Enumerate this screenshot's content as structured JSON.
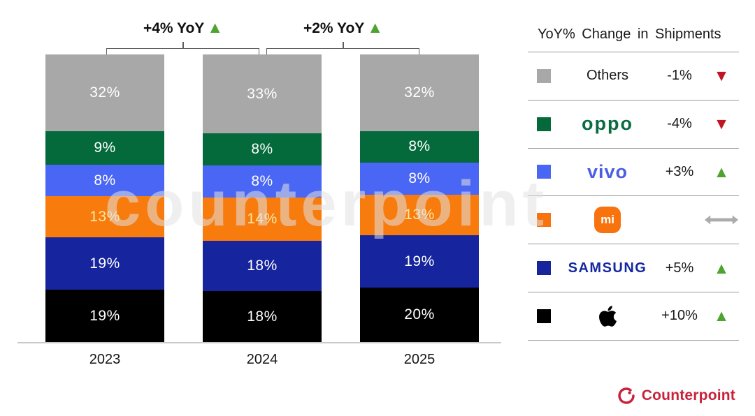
{
  "watermark": {
    "text": "counterpoint"
  },
  "chart_data": {
    "type": "bar",
    "stacked": true,
    "title": "",
    "categories": [
      "2023",
      "2024",
      "2025"
    ],
    "unit": "%",
    "series": [
      {
        "name": "Others",
        "color": "#a8a8a8",
        "label_color": "#ffffff",
        "values": [
          32,
          33,
          32
        ]
      },
      {
        "name": "OPPO",
        "color": "#04693b",
        "label_color": "#ffffff",
        "values": [
          9,
          8,
          8
        ]
      },
      {
        "name": "vivo",
        "color": "#4a66f4",
        "label_color": "#ffffff",
        "values": [
          8,
          8,
          8
        ]
      },
      {
        "name": "Xiaomi",
        "color": "#f87b0e",
        "label_color": "#fbe9a6",
        "values": [
          13,
          14,
          13
        ]
      },
      {
        "name": "Samsung",
        "color": "#16259d",
        "label_color": "#ffffff",
        "values": [
          19,
          18,
          19
        ]
      },
      {
        "name": "Apple",
        "color": "#000000",
        "label_color": "#ffffff",
        "values": [
          19,
          18,
          20
        ]
      }
    ],
    "annotations": [
      {
        "label": "+4% YoY",
        "direction": "up",
        "between": [
          "2023",
          "2024"
        ]
      },
      {
        "label": "+2% YoY",
        "direction": "up",
        "between": [
          "2024",
          "2025"
        ]
      }
    ],
    "legend_position": "right",
    "grid": false
  },
  "legend": {
    "title": "YoY% Change in Shipments",
    "up_color": "#4fa42f",
    "down_color": "#be1622",
    "flat_color": "#ababab",
    "rows": [
      {
        "brand": "Others",
        "logo": "plain",
        "label": "Others",
        "swatch": "#a8a8a8",
        "change": "-1%",
        "direction": "down"
      },
      {
        "brand": "OPPO",
        "logo": "oppo",
        "label": "oppo",
        "swatch": "#04693b",
        "change": "-4%",
        "direction": "down"
      },
      {
        "brand": "vivo",
        "logo": "vivo",
        "label": "vivo",
        "swatch": "#4a66f4",
        "change": "+3%",
        "direction": "up"
      },
      {
        "brand": "Xiaomi",
        "logo": "mi",
        "label": "mi",
        "swatch": "#f8720d",
        "change": "",
        "direction": "flat"
      },
      {
        "brand": "Samsung",
        "logo": "samsung",
        "label": "SAMSUNG",
        "swatch": "#16259d",
        "change": "+5%",
        "direction": "up"
      },
      {
        "brand": "Apple",
        "logo": "apple",
        "label": "Apple",
        "swatch": "#000000",
        "change": "+10%",
        "direction": "up"
      }
    ]
  },
  "footer": {
    "brand": "Counterpoint",
    "brand_color": "#c8223a"
  }
}
